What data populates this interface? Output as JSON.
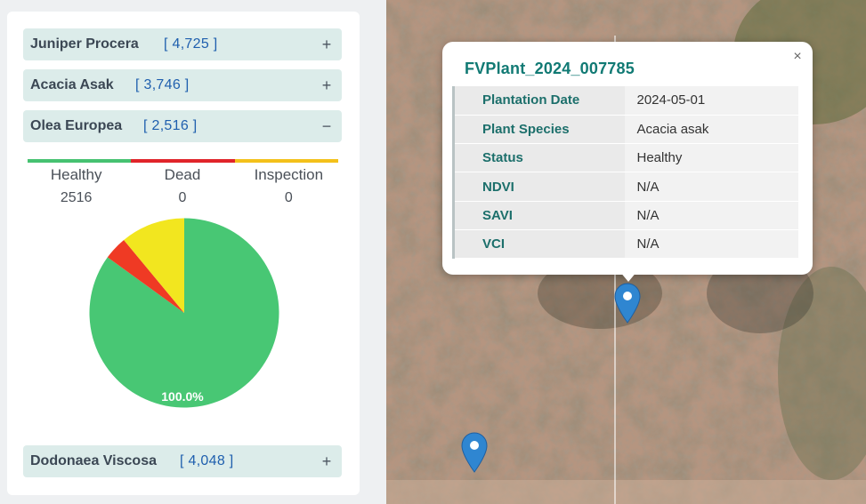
{
  "species": [
    {
      "name": "Juniper Procera",
      "count": "[ 4,725 ]",
      "toggle": "+"
    },
    {
      "name": "Acacia Asak",
      "count": "[ 3,746 ]",
      "toggle": "+"
    },
    {
      "name": "Olea Europea",
      "count": "[ 2,516 ]",
      "toggle": "−"
    },
    {
      "name": "Dodonaea Viscosa",
      "count": "[ 4,048 ]",
      "toggle": "+"
    }
  ],
  "status": [
    {
      "label": "Healthy",
      "value": "2516",
      "color": "#46c271"
    },
    {
      "label": "Dead",
      "value": "0",
      "color": "#e0242a"
    },
    {
      "label": "Inspection",
      "value": "0",
      "color": "#f3c11a"
    }
  ],
  "chart_data": {
    "type": "pie",
    "slices": [
      {
        "value": 85,
        "color": "#48c774"
      },
      {
        "value": 4,
        "color": "#ef3a24"
      },
      {
        "value": 11,
        "color": "#f2e61f"
      }
    ],
    "data_label": "100.0%"
  },
  "popup": {
    "title": "FVPlant_2024_007785",
    "close": "×",
    "rows": [
      {
        "key": "Plantation Date",
        "value": "2024-05-01"
      },
      {
        "key": "Plant Species",
        "value": "Acacia asak"
      },
      {
        "key": "Status",
        "value": "Healthy"
      },
      {
        "key": "NDVI",
        "value": "N/A"
      },
      {
        "key": "SAVI",
        "value": "N/A"
      },
      {
        "key": "VCI",
        "value": "N/A"
      }
    ]
  },
  "colors": {
    "marker": "#2f86d1",
    "accent": "#117a74"
  }
}
